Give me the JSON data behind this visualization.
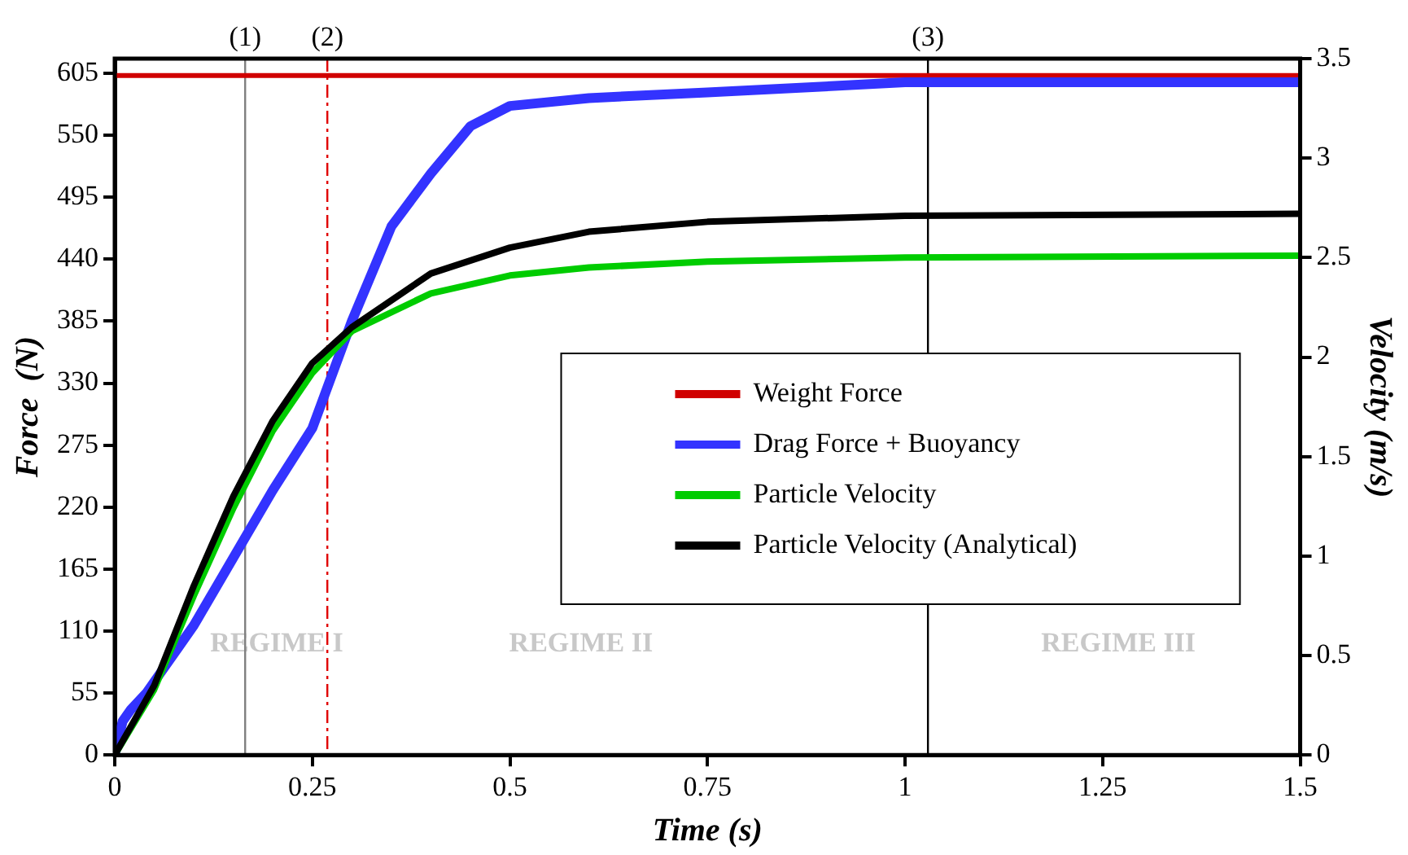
{
  "chart_data": {
    "type": "line",
    "xlabel": "Time (s)",
    "ylabel": "Force  (N)",
    "y2label": "Velocity (m/s)",
    "xlim": [
      0,
      1.5
    ],
    "xticks": [
      0,
      0.25,
      0.5,
      0.75,
      1,
      1.25,
      1.5
    ],
    "ylim": [
      0,
      618
    ],
    "yticks": [
      0,
      55,
      110,
      165,
      220,
      275,
      330,
      385,
      440,
      495,
      550,
      605
    ],
    "y2lim": [
      0,
      3.5
    ],
    "y2ticks": [
      0,
      0.5,
      1,
      1.5,
      2,
      2.5,
      3,
      3.5
    ],
    "grid": false,
    "legend": "right",
    "marker": "none",
    "line_style": "solid",
    "series": [
      {
        "name": "Weight Force",
        "color": "#d00000",
        "x": [
          0,
          1.5
        ],
        "values": [
          603,
          603
        ]
      },
      {
        "name": "Drag Force + Buoyancy",
        "color": "#3333ff",
        "x": [
          0,
          0.01,
          0.02,
          0.04,
          0.06,
          0.08,
          0.1,
          0.15,
          0.2,
          0.25,
          0.3,
          0.35,
          0.4,
          0.45,
          0.5,
          0.6,
          0.75,
          1,
          1.25,
          1.5
        ],
        "values": [
          0,
          30,
          40,
          55,
          75,
          95,
          115,
          175,
          235,
          290,
          385,
          469,
          516,
          558,
          576,
          583,
          588,
          597,
          597,
          597
        ]
      },
      {
        "name": "Particle Velocity",
        "color": "#00cc00",
        "axis": "y2",
        "x": [
          0,
          0.05,
          0.1,
          0.15,
          0.2,
          0.25,
          0.3,
          0.4,
          0.5,
          0.6,
          0.75,
          1,
          1.5
        ],
        "values": [
          0,
          0.33,
          0.8,
          1.24,
          1.63,
          1.92,
          2.13,
          2.32,
          2.41,
          2.45,
          2.48,
          2.5,
          2.51
        ]
      },
      {
        "name": "Particle Velocity (Analytical)",
        "color": "#000000",
        "axis": "y2",
        "x": [
          0,
          0.05,
          0.1,
          0.15,
          0.2,
          0.25,
          0.3,
          0.4,
          0.5,
          0.6,
          0.75,
          1,
          1.5
        ],
        "values": [
          0,
          0.35,
          0.85,
          1.3,
          1.68,
          1.97,
          2.15,
          2.42,
          2.55,
          2.63,
          2.68,
          2.71,
          2.72
        ]
      }
    ],
    "ref_lines": [
      {
        "axis": "x",
        "value": 0.165,
        "color": "#808080",
        "line_style": "solid"
      },
      {
        "axis": "x",
        "value": 0.269,
        "color": "#e00000",
        "line_style": "dashed"
      },
      {
        "axis": "x",
        "value": 1.029,
        "color": "#000000",
        "line_style": "solid"
      }
    ],
    "annotations": [
      "REGIME I",
      "REGIME II",
      "REGIME III",
      "(1)",
      "(2)",
      "(3)"
    ]
  }
}
